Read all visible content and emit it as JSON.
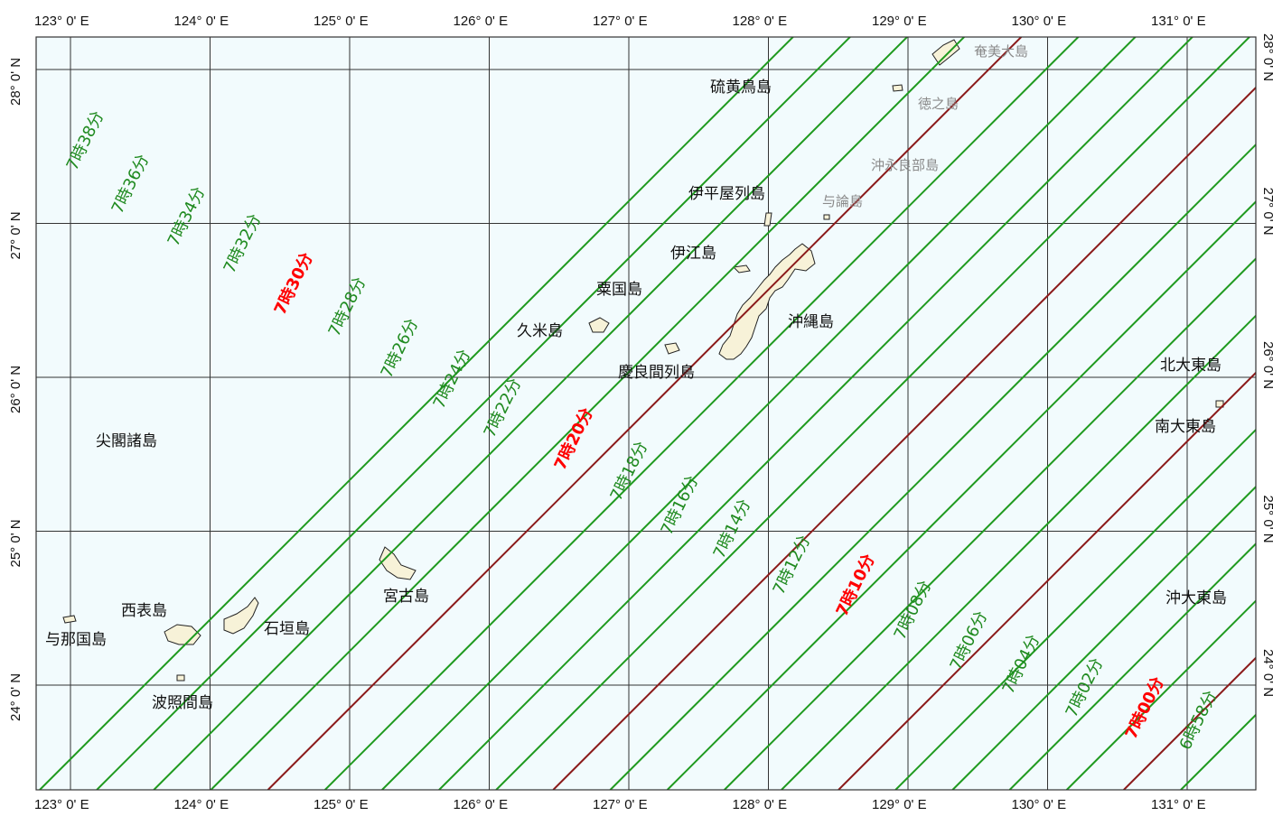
{
  "colors": {
    "sea": "#f2fbfd",
    "grid": "#333333",
    "minute_line": "#1f9a1f",
    "ten_minute_line": "#8b1a1a",
    "minute_label": "#1f8a1f",
    "ten_minute_label": "#ff0000",
    "island_fill": "#f7f2d8"
  },
  "map": {
    "type": "eclipse-isochrone-map",
    "lon_range": [
      122.75,
      131.5
    ],
    "lat_range": [
      23.5,
      28.2
    ],
    "meridians": [
      {
        "lon": 123,
        "label": "123°  0' E"
      },
      {
        "lon": 124,
        "label": "124°  0' E"
      },
      {
        "lon": 125,
        "label": "125°  0' E"
      },
      {
        "lon": 126,
        "label": "126°  0' E"
      },
      {
        "lon": 127,
        "label": "127°  0' E"
      },
      {
        "lon": 128,
        "label": "128°  0' E"
      },
      {
        "lon": 129,
        "label": "129°  0' E"
      },
      {
        "lon": 130,
        "label": "130°  0' E"
      },
      {
        "lon": 131,
        "label": "131°  0' E"
      }
    ],
    "parallels": [
      {
        "lat": 24,
        "label": "24°  0' N"
      },
      {
        "lat": 25,
        "label": "25°  0' N"
      },
      {
        "lat": 26,
        "label": "26°  0' N"
      },
      {
        "lat": 27,
        "label": "27°  0' N"
      },
      {
        "lat": 28,
        "label": "28°  0' N"
      }
    ],
    "isochrones": [
      {
        "label": "7時38分",
        "major": false
      },
      {
        "label": "7時36分",
        "major": false
      },
      {
        "label": "7時34分",
        "major": false
      },
      {
        "label": "7時32分",
        "major": false
      },
      {
        "label": "7時30分",
        "major": true
      },
      {
        "label": "7時28分",
        "major": false
      },
      {
        "label": "7時26分",
        "major": false
      },
      {
        "label": "7時24分",
        "major": false
      },
      {
        "label": "7時22分",
        "major": false
      },
      {
        "label": "7時20分",
        "major": true
      },
      {
        "label": "7時18分",
        "major": false
      },
      {
        "label": "7時16分",
        "major": false
      },
      {
        "label": "7時14分",
        "major": false
      },
      {
        "label": "7時12分",
        "major": false
      },
      {
        "label": "7時10分",
        "major": true
      },
      {
        "label": "7時08分",
        "major": false
      },
      {
        "label": "7時06分",
        "major": false
      },
      {
        "label": "7時04分",
        "major": false
      },
      {
        "label": "7時02分",
        "major": false
      },
      {
        "label": "7時00分",
        "major": true
      },
      {
        "label": "6時58分",
        "major": false
      }
    ],
    "places": [
      {
        "name": "奄美大島",
        "dim": true
      },
      {
        "name": "硫黄鳥島",
        "dim": false
      },
      {
        "name": "徳之島",
        "dim": true
      },
      {
        "name": "沖永良部島",
        "dim": true
      },
      {
        "name": "伊平屋列島",
        "dim": false
      },
      {
        "name": "与論島",
        "dim": true
      },
      {
        "name": "伊江島",
        "dim": false
      },
      {
        "name": "粟国島",
        "dim": false
      },
      {
        "name": "久米島",
        "dim": false
      },
      {
        "name": "沖縄島",
        "dim": false
      },
      {
        "name": "慶良間列島",
        "dim": false
      },
      {
        "name": "北大東島",
        "dim": false
      },
      {
        "name": "南大東島",
        "dim": false
      },
      {
        "name": "尖閣諸島",
        "dim": false
      },
      {
        "name": "宮古島",
        "dim": false
      },
      {
        "name": "西表島",
        "dim": false
      },
      {
        "name": "石垣島",
        "dim": false
      },
      {
        "name": "与那国島",
        "dim": false
      },
      {
        "name": "波照間島",
        "dim": false
      },
      {
        "name": "沖大東島",
        "dim": false
      }
    ]
  }
}
